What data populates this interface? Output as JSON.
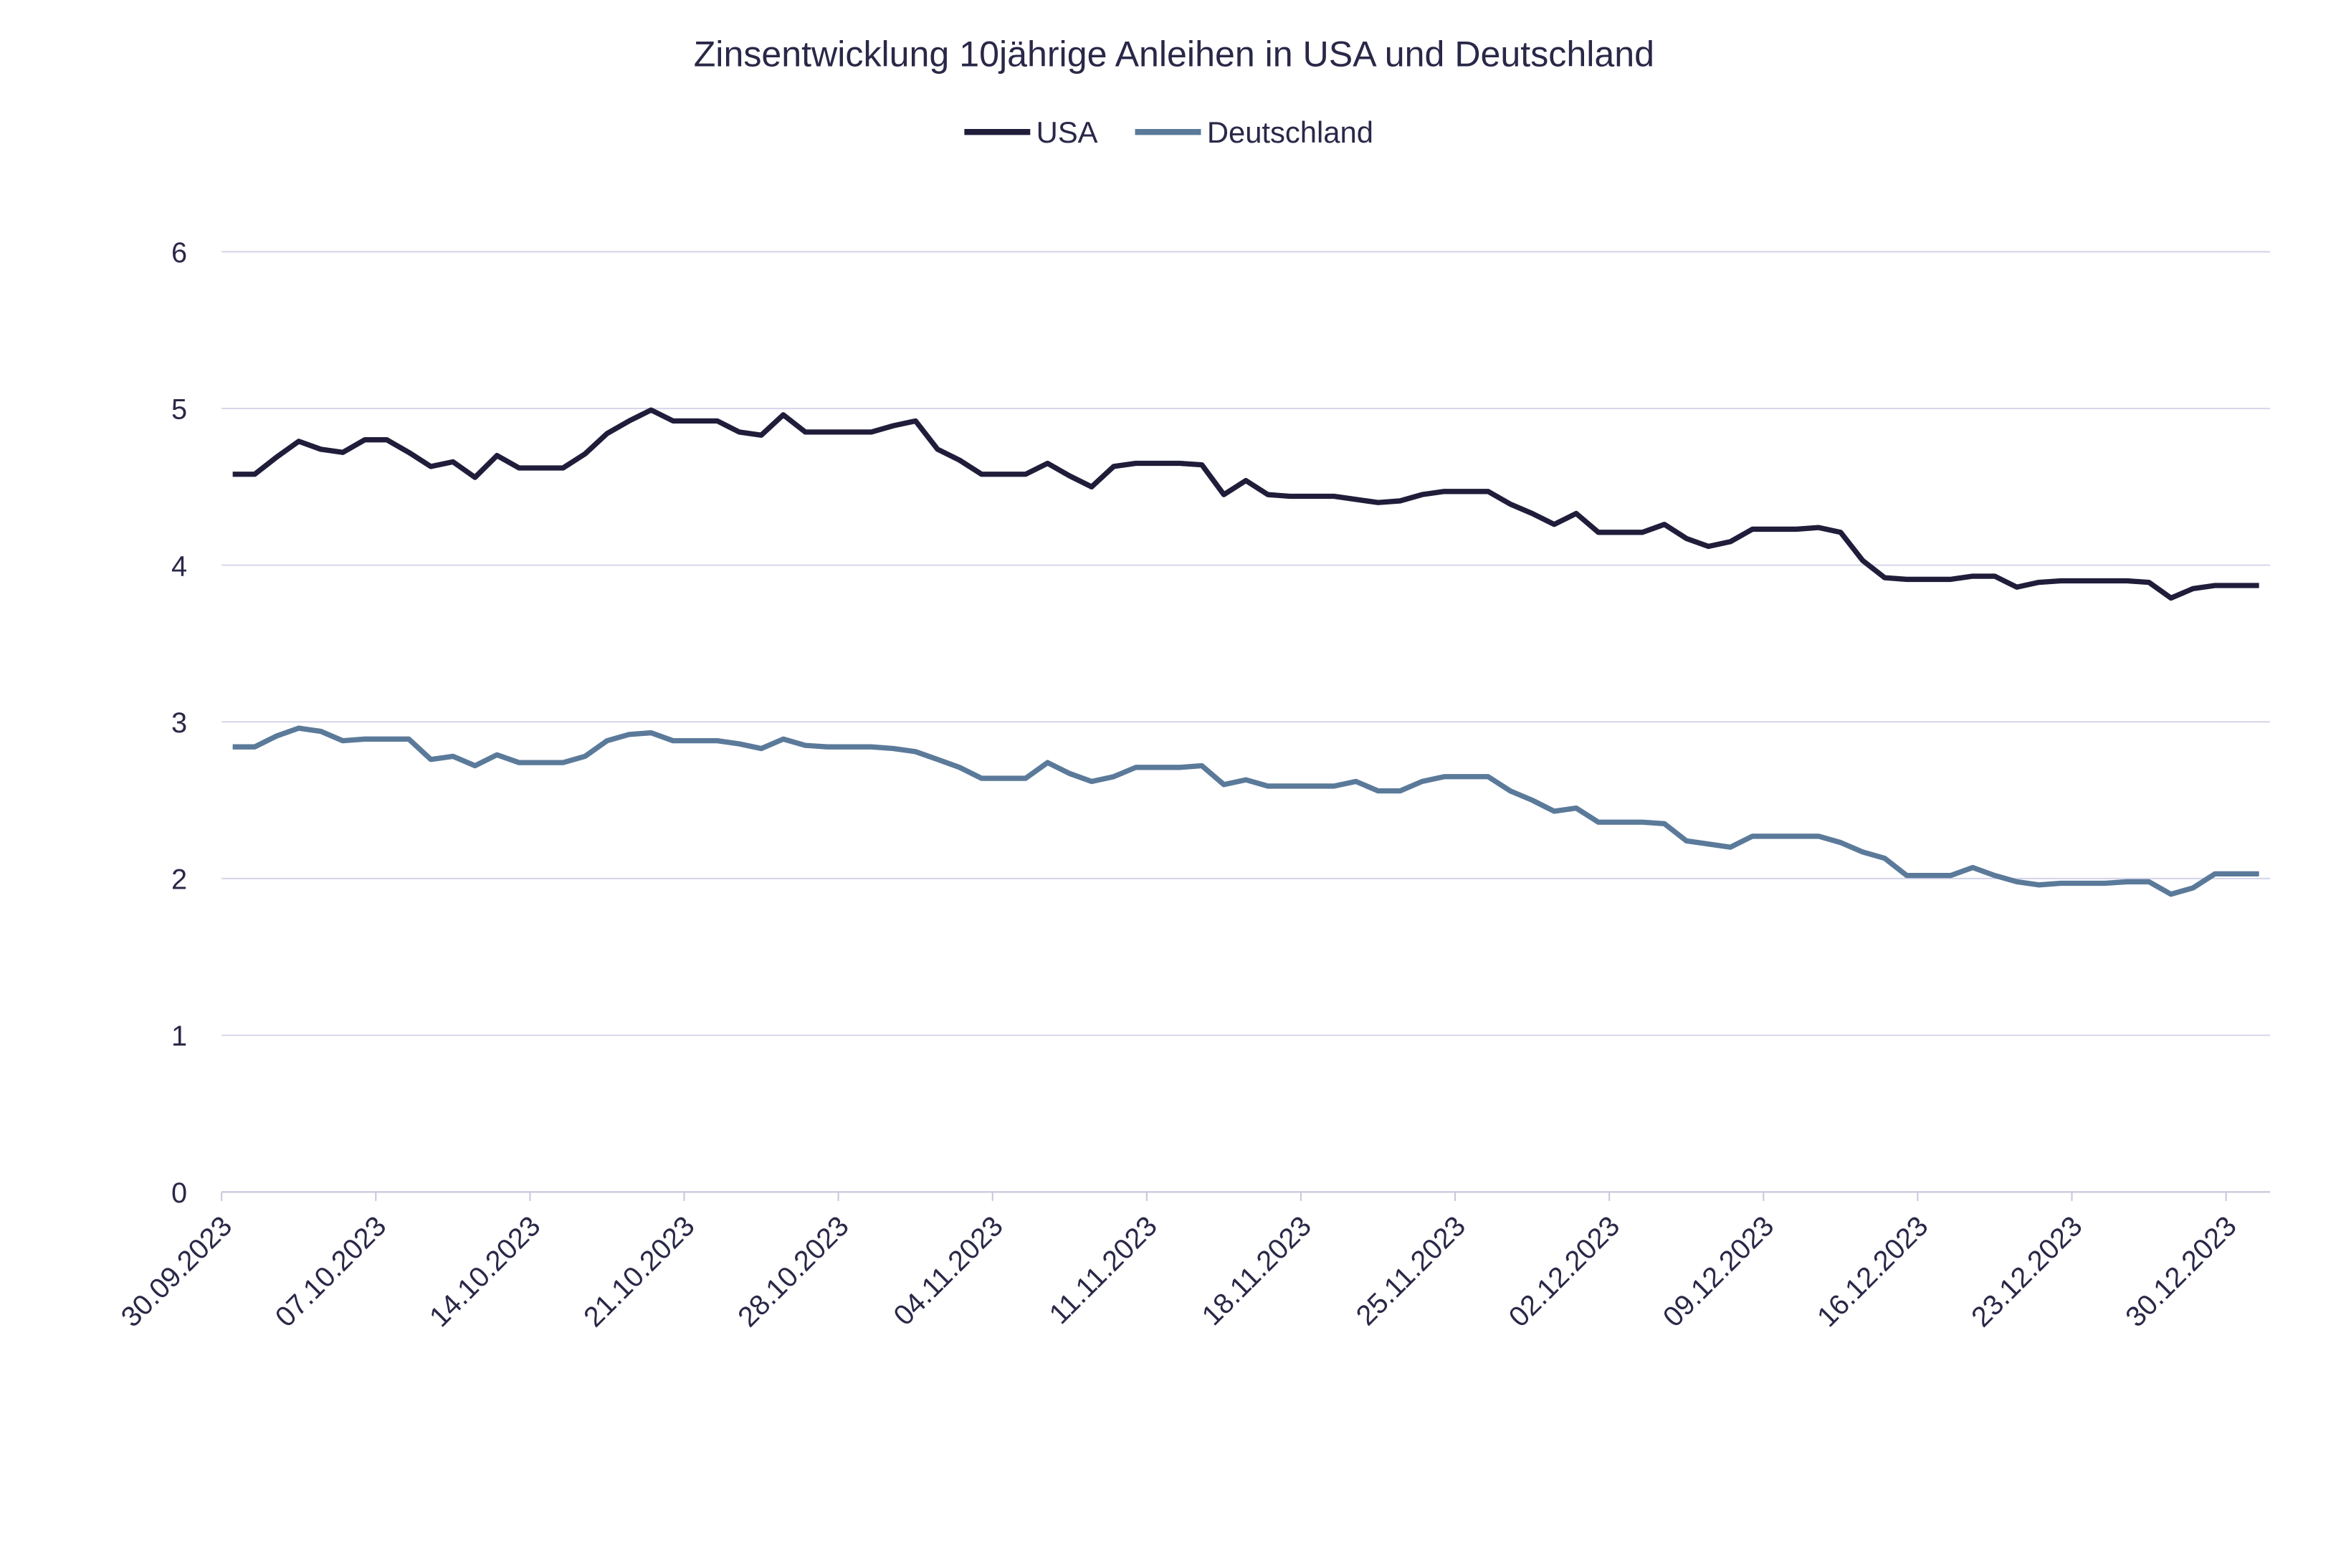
{
  "chart_data": {
    "type": "line",
    "title": "Zinsentwicklung 10jährige Anleihen in USA und Deutschland",
    "xlabel": "",
    "ylabel": "",
    "ylim": [
      0,
      6
    ],
    "yticks": [
      "0",
      "1",
      "2",
      "3",
      "4",
      "5",
      "6"
    ],
    "grid": "horizontal",
    "legend": "top-center",
    "xtick_labels": [
      "30.09.2023",
      "07.10.2023",
      "14.10.2023",
      "21.10.2023",
      "28.10.2023",
      "04.11.2023",
      "11.11.2023",
      "18.11.2023",
      "25.11.2023",
      "02.12.2023",
      "09.12.2023",
      "16.12.2023",
      "23.12.2023",
      "30.12.2023"
    ],
    "x": [
      "30.09.2023",
      "01.10.2023",
      "02.10.2023",
      "03.10.2023",
      "04.10.2023",
      "05.10.2023",
      "06.10.2023",
      "07.10.2023",
      "08.10.2023",
      "09.10.2023",
      "10.10.2023",
      "11.10.2023",
      "12.10.2023",
      "13.10.2023",
      "14.10.2023",
      "15.10.2023",
      "16.10.2023",
      "17.10.2023",
      "18.10.2023",
      "19.10.2023",
      "20.10.2023",
      "21.10.2023",
      "22.10.2023",
      "23.10.2023",
      "24.10.2023",
      "25.10.2023",
      "26.10.2023",
      "27.10.2023",
      "28.10.2023",
      "29.10.2023",
      "30.10.2023",
      "31.10.2023",
      "01.11.2023",
      "02.11.2023",
      "03.11.2023",
      "04.11.2023",
      "05.11.2023",
      "06.11.2023",
      "07.11.2023",
      "08.11.2023",
      "09.11.2023",
      "10.11.2023",
      "11.11.2023",
      "12.11.2023",
      "13.11.2023",
      "14.11.2023",
      "15.11.2023",
      "16.11.2023",
      "17.11.2023",
      "18.11.2023",
      "19.11.2023",
      "20.11.2023",
      "21.11.2023",
      "22.11.2023",
      "23.11.2023",
      "24.11.2023",
      "25.11.2023",
      "26.11.2023",
      "27.11.2023",
      "28.11.2023",
      "29.11.2023",
      "30.11.2023",
      "01.12.2023",
      "02.12.2023",
      "03.12.2023",
      "04.12.2023",
      "05.12.2023",
      "06.12.2023",
      "07.12.2023",
      "08.12.2023",
      "09.12.2023",
      "10.12.2023",
      "11.12.2023",
      "12.12.2023",
      "13.12.2023",
      "14.12.2023",
      "15.12.2023",
      "16.12.2023",
      "17.12.2023",
      "18.12.2023",
      "19.12.2023",
      "20.12.2023",
      "21.12.2023",
      "22.12.2023",
      "23.12.2023",
      "24.12.2023",
      "25.12.2023",
      "26.12.2023",
      "27.12.2023",
      "28.12.2023",
      "29.12.2023",
      "30.12.2023",
      "31.12.2023"
    ],
    "series": [
      {
        "name": "USA",
        "color": "#1f1d3a",
        "values": [
          4.58,
          4.58,
          4.69,
          4.79,
          4.74,
          4.72,
          4.8,
          4.8,
          4.72,
          4.63,
          4.66,
          4.56,
          4.7,
          4.62,
          4.62,
          4.62,
          4.71,
          4.84,
          4.92,
          4.99,
          4.92,
          4.92,
          4.92,
          4.85,
          4.83,
          4.96,
          4.85,
          4.85,
          4.85,
          4.85,
          4.89,
          4.92,
          4.74,
          4.67,
          4.58,
          4.58,
          4.58,
          4.65,
          4.57,
          4.5,
          4.63,
          4.65,
          4.65,
          4.65,
          4.64,
          4.45,
          4.54,
          4.45,
          4.44,
          4.44,
          4.44,
          4.42,
          4.4,
          4.41,
          4.45,
          4.47,
          4.47,
          4.47,
          4.39,
          4.33,
          4.26,
          4.33,
          4.21,
          4.21,
          4.21,
          4.26,
          4.17,
          4.12,
          4.15,
          4.23,
          4.23,
          4.23,
          4.24,
          4.21,
          4.03,
          3.92,
          3.91,
          3.91,
          3.91,
          3.93,
          3.93,
          3.86,
          3.89,
          3.9,
          3.9,
          3.9,
          3.9,
          3.89,
          3.79,
          3.85,
          3.87,
          3.87,
          3.87
        ]
      },
      {
        "name": "Deutschland",
        "color": "#5b7a9a",
        "values": [
          2.84,
          2.84,
          2.91,
          2.96,
          2.94,
          2.88,
          2.89,
          2.89,
          2.89,
          2.76,
          2.78,
          2.72,
          2.79,
          2.74,
          2.74,
          2.74,
          2.78,
          2.88,
          2.92,
          2.93,
          2.88,
          2.88,
          2.88,
          2.86,
          2.83,
          2.89,
          2.85,
          2.84,
          2.84,
          2.84,
          2.83,
          2.81,
          2.76,
          2.71,
          2.64,
          2.64,
          2.64,
          2.74,
          2.67,
          2.62,
          2.65,
          2.71,
          2.71,
          2.71,
          2.72,
          2.6,
          2.63,
          2.59,
          2.59,
          2.59,
          2.59,
          2.62,
          2.56,
          2.56,
          2.62,
          2.65,
          2.65,
          2.65,
          2.56,
          2.5,
          2.43,
          2.45,
          2.36,
          2.36,
          2.36,
          2.35,
          2.24,
          2.22,
          2.2,
          2.27,
          2.27,
          2.27,
          2.27,
          2.23,
          2.17,
          2.13,
          2.02,
          2.02,
          2.02,
          2.07,
          2.02,
          1.98,
          1.96,
          1.97,
          1.97,
          1.97,
          1.98,
          1.98,
          1.9,
          1.94,
          2.03,
          2.03,
          2.03
        ]
      }
    ]
  }
}
